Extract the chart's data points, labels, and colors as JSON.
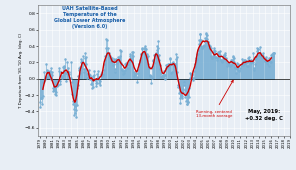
{
  "title_lines": [
    "UAH Satellite-Based",
    "Temperature of the",
    "Global Lower Atmosphere",
    "(Version 6.0)"
  ],
  "title_color": "#1a5fa8",
  "ylabel": "T Departure from '81-'10 Avg. (deg. C)",
  "ylim": [
    -0.7,
    0.9
  ],
  "yticks": [
    -0.6,
    -0.4,
    -0.2,
    0.0,
    0.2,
    0.4,
    0.6,
    0.8
  ],
  "annotation_text": "Running, centered\n13-month average",
  "annotation_color": "#cc0000",
  "latest_text": "May, 2019:\n+0.32 deg. C",
  "latest_color": "#000000",
  "bar_color": "#7ab0d4",
  "line_color": "#cc0000",
  "background_color": "#e8eef5",
  "grid_color": "#ffffff",
  "uah_data": [
    -0.289,
    -0.347,
    -0.234,
    -0.233,
    -0.232,
    -0.311,
    -0.217,
    -0.046,
    -0.031,
    0.077,
    0.026,
    -0.009,
    0.176,
    0.105,
    0.017,
    0.059,
    0.099,
    0.082,
    0.069,
    0.063,
    0.097,
    0.131,
    -0.009,
    0.087,
    0.041,
    -0.108,
    -0.155,
    -0.133,
    -0.119,
    -0.149,
    -0.188,
    -0.2,
    -0.164,
    -0.085,
    -0.074,
    -0.082,
    0.127,
    0.098,
    -0.069,
    -0.024,
    0.037,
    0.088,
    0.024,
    0.006,
    0.043,
    0.138,
    0.148,
    0.154,
    0.238,
    0.064,
    -0.028,
    0.075,
    0.064,
    0.201,
    0.131,
    0.059,
    0.083,
    0.052,
    0.003,
    0.008,
    0.203,
    -0.036,
    -0.185,
    -0.274,
    -0.306,
    -0.444,
    -0.372,
    -0.331,
    -0.418,
    -0.466,
    -0.388,
    -0.321,
    -0.118,
    -0.072,
    0.033,
    0.111,
    0.131,
    0.07,
    0.143,
    0.21,
    0.244,
    0.222,
    0.203,
    0.279,
    0.087,
    0.124,
    0.249,
    0.318,
    0.263,
    0.182,
    0.055,
    0.012,
    0.022,
    0.071,
    0.054,
    0.11,
    0.048,
    -0.0,
    -0.059,
    0.024,
    -0.069,
    -0.113,
    -0.101,
    0.033,
    0.049,
    0.096,
    -0.015,
    -0.053,
    -0.083,
    -0.053,
    0.052,
    0.096,
    0.026,
    -0.02,
    -0.051,
    -0.072,
    -0.025,
    0.037,
    0.052,
    0.048,
    0.079,
    0.043,
    0.057,
    0.108,
    0.178,
    0.235,
    0.274,
    0.372,
    0.481,
    0.478,
    0.377,
    0.298,
    0.32,
    0.26,
    0.27,
    0.273,
    0.236,
    0.236,
    0.21,
    0.253,
    0.166,
    0.221,
    0.246,
    0.183,
    0.082,
    0.124,
    0.228,
    0.241,
    0.226,
    0.19,
    0.234,
    0.26,
    0.256,
    0.278,
    0.352,
    0.334,
    0.197,
    0.107,
    0.12,
    0.095,
    0.06,
    0.064,
    0.097,
    0.111,
    0.179,
    0.193,
    0.164,
    0.172,
    0.182,
    0.13,
    0.176,
    0.218,
    0.227,
    0.278,
    0.298,
    0.253,
    0.321,
    0.287,
    0.327,
    0.272,
    0.088,
    0.033,
    0.059,
    0.06,
    0.069,
    0.052,
    -0.034,
    0.017,
    0.072,
    0.102,
    0.174,
    0.174,
    0.234,
    0.222,
    0.3,
    0.299,
    0.372,
    0.358,
    0.327,
    0.32,
    0.375,
    0.394,
    0.38,
    0.369,
    0.266,
    0.302,
    0.267,
    0.281,
    0.183,
    0.141,
    0.131,
    0.044,
    0.038,
    0.032,
    -0.05,
    0.013,
    0.136,
    0.214,
    0.234,
    0.193,
    0.296,
    0.284,
    0.286,
    0.32,
    0.356,
    0.406,
    0.464,
    0.377,
    0.293,
    0.229,
    0.17,
    0.122,
    0.074,
    0.022,
    0.023,
    0.035,
    0.044,
    0.034,
    0.09,
    0.059,
    0.002,
    0.046,
    0.162,
    0.127,
    0.164,
    0.183,
    0.157,
    0.179,
    0.161,
    0.256,
    0.245,
    0.177,
    0.069,
    0.079,
    0.192,
    0.21,
    0.184,
    0.166,
    0.151,
    0.176,
    0.179,
    0.243,
    0.302,
    0.261,
    0.086,
    -0.079,
    -0.096,
    -0.172,
    -0.295,
    -0.237,
    -0.215,
    -0.209,
    -0.205,
    -0.231,
    -0.157,
    -0.126,
    -0.041,
    -0.077,
    -0.133,
    -0.224,
    -0.184,
    -0.267,
    -0.314,
    -0.313,
    -0.285,
    -0.28,
    -0.22,
    -0.118,
    0.012,
    0.076,
    0.061,
    0.048,
    0.063,
    0.01,
    -0.012,
    0.014,
    0.097,
    0.145,
    0.179,
    0.228,
    0.256,
    0.244,
    0.305,
    0.304,
    0.357,
    0.419,
    0.472,
    0.545,
    0.544,
    0.476,
    0.395,
    0.381,
    0.378,
    0.401,
    0.401,
    0.411,
    0.449,
    0.5,
    0.552,
    0.556,
    0.54,
    0.48,
    0.455,
    0.453,
    0.418,
    0.377,
    0.377,
    0.397,
    0.376,
    0.282,
    0.252,
    0.257,
    0.279,
    0.321,
    0.356,
    0.374,
    0.338,
    0.27,
    0.267,
    0.231,
    0.258,
    0.294,
    0.326,
    0.296,
    0.323,
    0.34,
    0.287,
    0.235,
    0.23,
    0.216,
    0.208,
    0.26,
    0.24,
    0.295,
    0.286,
    0.32,
    0.295,
    0.259,
    0.224,
    0.196,
    0.161,
    0.175,
    0.196,
    0.173,
    0.163,
    0.157,
    0.167,
    0.233,
    0.217,
    0.231,
    0.263,
    0.281,
    0.258,
    0.207,
    0.148,
    0.135,
    0.126,
    0.076,
    0.113,
    0.189,
    0.184,
    0.144,
    0.107,
    0.1,
    0.131,
    0.171,
    0.169,
    0.243,
    0.194,
    0.208,
    0.17,
    0.186,
    0.225,
    0.229,
    0.187,
    0.206,
    0.221,
    0.208,
    0.151,
    0.155,
    0.254,
    0.27,
    0.232,
    0.215,
    0.218,
    0.189,
    0.224,
    0.215,
    0.315,
    0.209,
    0.11,
    0.137,
    0.185,
    0.242,
    0.273,
    0.258,
    0.341,
    0.376,
    0.368,
    0.367,
    0.295,
    0.285,
    0.384,
    0.312,
    0.283,
    0.271,
    0.259,
    0.295,
    0.309,
    0.283,
    0.25,
    0.219,
    0.214,
    0.266,
    0.238,
    0.194,
    0.189,
    0.218,
    0.181,
    0.157,
    0.257,
    0.208,
    0.215,
    0.21,
    0.288,
    0.308,
    0.254,
    0.28,
    0.316,
    0.318,
    0.32
  ],
  "start_year": 1979,
  "start_month": 1
}
